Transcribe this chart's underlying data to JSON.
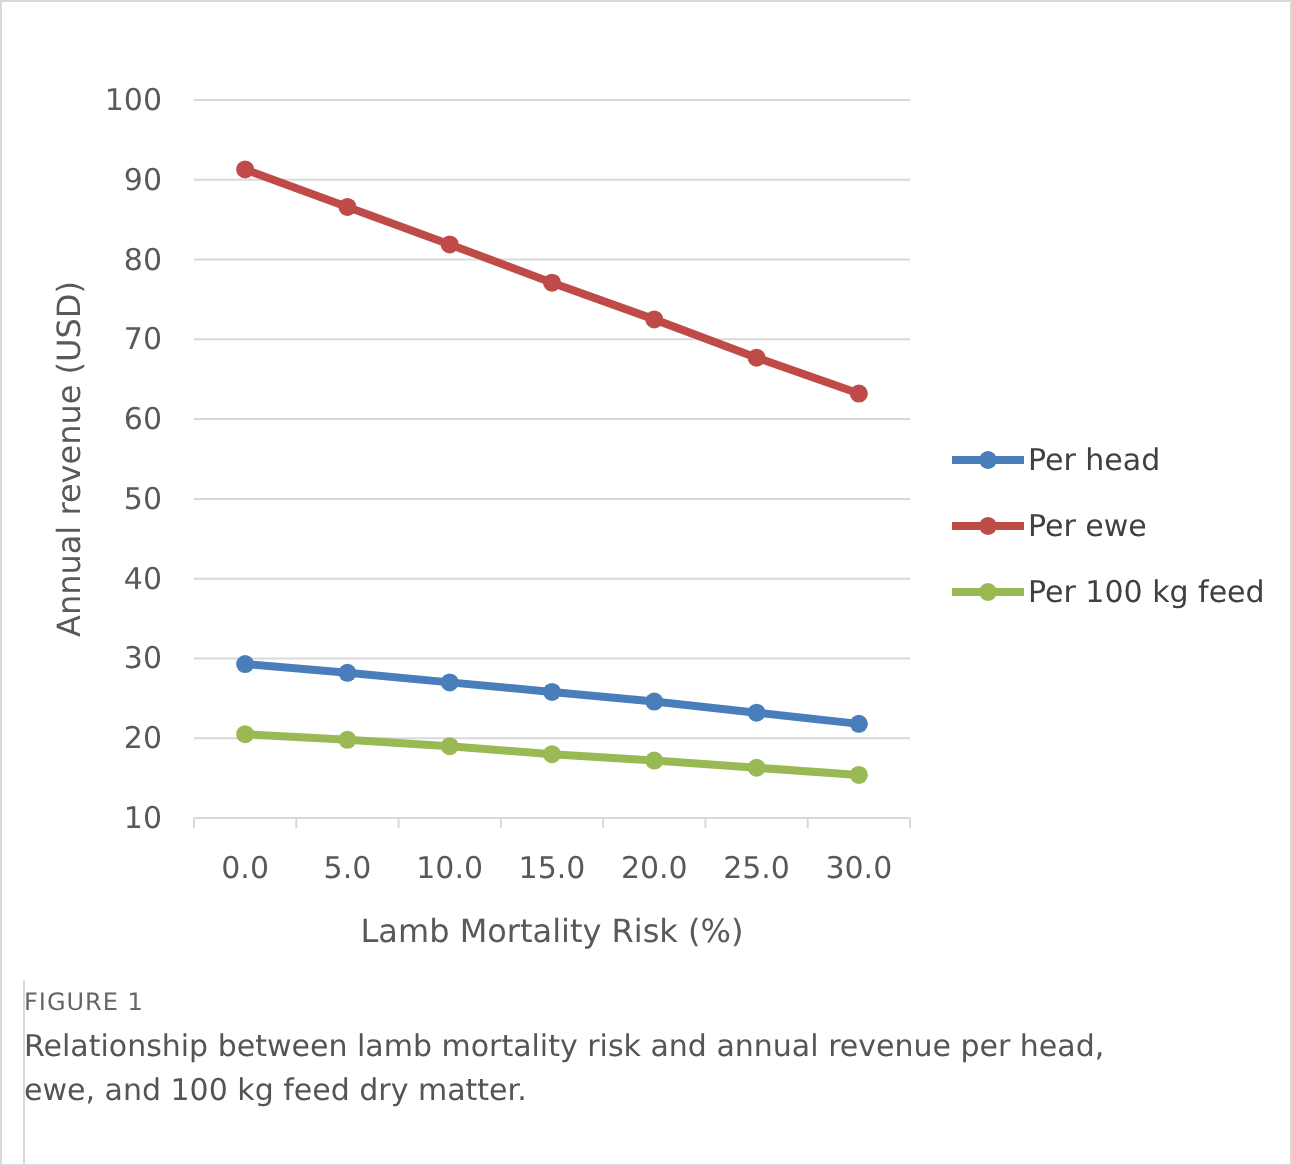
{
  "chart_data": {
    "type": "line",
    "xlabel": "Lamb Mortality Risk (%)",
    "ylabel": "Annual revenue (USD)",
    "categories": [
      "0.0",
      "5.0",
      "10.0",
      "15.0",
      "20.0",
      "25.0",
      "30.0"
    ],
    "series": [
      {
        "name": "Per head",
        "color": "#4a7ebb",
        "values": [
          29.3,
          28.2,
          27.0,
          25.8,
          24.6,
          23.2,
          21.8
        ]
      },
      {
        "name": "Per ewe",
        "color": "#be4b48",
        "values": [
          91.3,
          86.6,
          81.9,
          77.1,
          72.5,
          67.7,
          63.2
        ]
      },
      {
        "name": "Per 100 kg feed",
        "color": "#98b954",
        "values": [
          20.5,
          19.8,
          19.0,
          18.0,
          17.2,
          16.3,
          15.4
        ]
      }
    ],
    "ylim": [
      10,
      100
    ],
    "yticks": [
      10,
      20,
      30,
      40,
      50,
      60,
      70,
      80,
      90,
      100
    ],
    "grid": "y",
    "legend": "right",
    "marker": "circle",
    "line_style": "solid",
    "annotations": [
      "FIGURE 1",
      "Relationship between lamb mortality risk and annual revenue per head, ewe, and 100 kg feed dry matter."
    ]
  }
}
